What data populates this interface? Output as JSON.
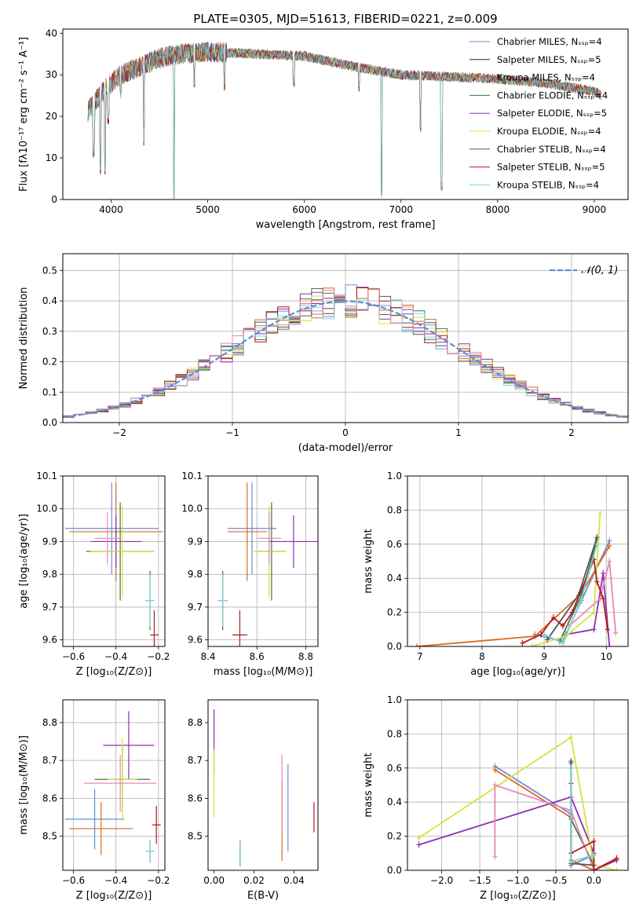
{
  "chart_data": [
    {
      "id": "spectrum",
      "type": "line",
      "title": "PLATE=0305, MJD=51613, FIBERID=0221, z=0.009",
      "xlabel": "wavelength [Angstrom, rest frame]",
      "ylabel": "Flux [fλ10⁻¹⁷ erg cm⁻² s⁻¹ A⁻¹]",
      "xlim": [
        3500,
        9350
      ],
      "ylim": [
        0,
        41
      ],
      "xticks": [
        4000,
        5000,
        6000,
        7000,
        8000,
        9000
      ],
      "yticks": [
        0,
        10,
        20,
        30,
        40
      ],
      "grid": false,
      "legend_position": "top-right",
      "legend": [
        {
          "label": "Chabrier MILES, Nₛₛₚ=4",
          "color": "#6a8fd1"
        },
        {
          "label": "Salpeter MILES, Nₛₛₚ=5",
          "color": "#2b2b2b"
        },
        {
          "label": "Kroupa MILES, Nₛₛₚ=4",
          "color": "#d96b1c"
        },
        {
          "label": "Chabrier ELODIE, Nₛₛₚ=4",
          "color": "#3d7a3d"
        },
        {
          "label": "Salpeter ELODIE, Nₛₛₚ=5",
          "color": "#8e2fb0"
        },
        {
          "label": "Kroupa ELODIE, Nₛₛₚ=4",
          "color": "#d6e23c"
        },
        {
          "label": "Chabrier STELIB, Nₛₛₚ=4",
          "color": "#555555"
        },
        {
          "label": "Salpeter STELIB, Nₛₛₚ=5",
          "color": "#b3191e"
        },
        {
          "label": "Kroupa STELIB, Nₛₛₚ=4",
          "color": "#7dd3d8"
        }
      ],
      "continuum": [
        [
          3750,
          21
        ],
        [
          3850,
          24
        ],
        [
          3950,
          27
        ],
        [
          4100,
          30
        ],
        [
          4300,
          32
        ],
        [
          4500,
          34
        ],
        [
          4700,
          35
        ],
        [
          5000,
          35.5
        ],
        [
          5500,
          35
        ],
        [
          6000,
          34.5
        ],
        [
          6500,
          32
        ],
        [
          7000,
          30
        ],
        [
          7500,
          29.5
        ],
        [
          8000,
          29
        ],
        [
          8500,
          28
        ],
        [
          9000,
          26
        ],
        [
          9080,
          25
        ]
      ],
      "absorption_features": [
        [
          3820,
          10
        ],
        [
          3890,
          6
        ],
        [
          3935,
          6
        ],
        [
          3970,
          18
        ],
        [
          4100,
          24
        ],
        [
          4340,
          13
        ],
        [
          4650,
          0
        ],
        [
          4861,
          27
        ],
        [
          5175,
          26
        ],
        [
          5890,
          27
        ],
        [
          6563,
          26
        ],
        [
          6800,
          0
        ],
        [
          7200,
          16
        ],
        [
          7420,
          2
        ]
      ]
    },
    {
      "id": "residuals",
      "type": "histogram",
      "xlabel": "(data-model)/error",
      "ylabel": "Normed distribution",
      "xlim": [
        -2.5,
        2.5
      ],
      "ylim": [
        0,
        0.555
      ],
      "xticks": [
        -2,
        -1,
        0,
        1,
        2
      ],
      "yticks": [
        0.0,
        0.1,
        0.2,
        0.3,
        0.4,
        0.5
      ],
      "grid": true,
      "legend_position": "top-right",
      "reference_curve": {
        "label": "𝒩(0, 1)",
        "color": "#5b8ed6",
        "mean": 0,
        "sigma": 1
      },
      "bin_width": 0.1,
      "series_colors": [
        "#6a8fd1",
        "#d96b1c",
        "#3d7a3d",
        "#8e2fb0",
        "#d6e23c",
        "#555555",
        "#b3191e",
        "#7dd3d8",
        "#e887b5"
      ]
    },
    {
      "id": "age-vs-z",
      "type": "errorbar",
      "xlabel": "Z [log₁₀(Z/Z⊙)]",
      "ylabel": "age  [log₁₀(age/yr)]",
      "xlim": [
        -0.65,
        -0.17
      ],
      "ylim": [
        9.58,
        10.1
      ],
      "xticks": [
        -0.6,
        -0.4,
        -0.2
      ],
      "xtick_labels": [
        "−0.6",
        "−0.4",
        "−0.2"
      ],
      "yticks": [
        9.6,
        9.7,
        9.8,
        9.9,
        10.0,
        10.1
      ],
      "grid": true,
      "points": [
        {
          "x": -0.42,
          "y": 9.94,
          "xerr": 0.22,
          "yerr": 0.14,
          "color": "#6a8fd1"
        },
        {
          "x": -0.4,
          "y": 9.93,
          "xerr": 0.22,
          "yerr": 0.15,
          "color": "#d96b1c"
        },
        {
          "x": -0.38,
          "y": 9.87,
          "xerr": 0.16,
          "yerr": 0.15,
          "color": "#3d7a3d"
        },
        {
          "x": -0.4,
          "y": 9.9,
          "xerr": 0.12,
          "yerr": 0.08,
          "color": "#8e2fb0"
        },
        {
          "x": -0.37,
          "y": 9.87,
          "xerr": 0.15,
          "yerr": 0.14,
          "color": "#d6e23c"
        },
        {
          "x": -0.44,
          "y": 9.91,
          "xerr": 0.06,
          "yerr": 0.08,
          "color": "#e887b5"
        },
        {
          "x": -0.24,
          "y": 9.72,
          "xerr": 0.02,
          "yerr": 0.09,
          "color": "#555555"
        },
        {
          "x": -0.22,
          "y": 9.615,
          "xerr": 0.02,
          "yerr": 0.075,
          "color": "#b3191e"
        },
        {
          "x": -0.24,
          "y": 9.72,
          "xerr": 0.02,
          "yerr": 0.08,
          "color": "#7dd3d8"
        }
      ]
    },
    {
      "id": "age-vs-mass",
      "type": "errorbar",
      "xlabel": "mass [log₁₀(M/M⊙)]",
      "ylabel": "",
      "xlim": [
        8.4,
        8.85
      ],
      "ylim": [
        9.58,
        10.1
      ],
      "xticks": [
        8.4,
        8.6,
        8.8
      ],
      "yticks": [
        9.6,
        9.7,
        9.8,
        9.9,
        10.0,
        10.1
      ],
      "grid": true,
      "points": [
        {
          "x": 8.58,
          "y": 9.94,
          "xerr": 0.1,
          "yerr": 0.14,
          "color": "#6a8fd1"
        },
        {
          "x": 8.56,
          "y": 9.93,
          "xerr": 0.08,
          "yerr": 0.15,
          "color": "#d96b1c"
        },
        {
          "x": 8.66,
          "y": 9.87,
          "xerr": 0.06,
          "yerr": 0.15,
          "color": "#3d7a3d"
        },
        {
          "x": 8.75,
          "y": 9.9,
          "xerr": 0.1,
          "yerr": 0.08,
          "color": "#8e2fb0"
        },
        {
          "x": 8.65,
          "y": 9.87,
          "xerr": 0.07,
          "yerr": 0.14,
          "color": "#d6e23c"
        },
        {
          "x": 8.65,
          "y": 9.91,
          "xerr": 0.05,
          "yerr": 0.08,
          "color": "#e887b5"
        },
        {
          "x": 8.46,
          "y": 9.72,
          "xerr": 0.02,
          "yerr": 0.09,
          "color": "#555555"
        },
        {
          "x": 8.53,
          "y": 9.615,
          "xerr": 0.03,
          "yerr": 0.075,
          "color": "#b3191e"
        },
        {
          "x": 8.46,
          "y": 9.72,
          "xerr": 0.02,
          "yerr": 0.08,
          "color": "#7dd3d8"
        }
      ]
    },
    {
      "id": "weight-vs-age",
      "type": "line",
      "xlabel": "age  [log₁₀(age/yr)]",
      "ylabel": "mass weight",
      "xlim": [
        6.8,
        10.35
      ],
      "ylim": [
        0,
        1.0
      ],
      "xticks": [
        7,
        8,
        9,
        10
      ],
      "yticks": [
        0.0,
        0.2,
        0.4,
        0.6,
        0.8,
        1.0
      ],
      "grid": true,
      "series": [
        {
          "color": "#6a8fd1",
          "points": [
            [
              8.85,
              0.07
            ],
            [
              9.3,
              0.03
            ],
            [
              9.6,
              0.27
            ],
            [
              10.05,
              0.62
            ]
          ]
        },
        {
          "color": "#d96b1c",
          "points": [
            [
              6.95,
              0.0
            ],
            [
              8.85,
              0.06
            ],
            [
              9.6,
              0.31
            ],
            [
              10.05,
              0.59
            ]
          ]
        },
        {
          "color": "#3d7a3d",
          "points": [
            [
              9.25,
              0.03
            ],
            [
              9.6,
              0.3
            ],
            [
              9.85,
              0.63
            ]
          ]
        },
        {
          "color": "#8e2fb0",
          "points": [
            [
              9.35,
              0.07
            ],
            [
              9.8,
              0.1
            ],
            [
              9.95,
              0.43
            ],
            [
              10.05,
              0.0
            ]
          ]
        },
        {
          "color": "#d6e23c",
          "points": [
            [
              8.8,
              0.0
            ],
            [
              9.35,
              0.06
            ],
            [
              9.8,
              0.2
            ],
            [
              9.9,
              0.78
            ]
          ]
        },
        {
          "color": "#e887b5",
          "points": [
            [
              9.4,
              0.12
            ],
            [
              9.9,
              0.28
            ],
            [
              10.05,
              0.5
            ],
            [
              10.15,
              0.08
            ]
          ]
        },
        {
          "color": "#555555",
          "points": [
            [
              9.05,
              0.04
            ],
            [
              9.55,
              0.3
            ],
            [
              9.85,
              0.64
            ]
          ]
        },
        {
          "color": "#b3191e",
          "points": [
            [
              8.65,
              0.02
            ],
            [
              8.95,
              0.07
            ],
            [
              9.15,
              0.17
            ],
            [
              9.3,
              0.12
            ],
            [
              9.45,
              0.2
            ],
            [
              9.8,
              0.51
            ],
            [
              9.85,
              0.38
            ],
            [
              9.95,
              0.28
            ],
            [
              10.02,
              0.1
            ]
          ]
        },
        {
          "color": "#7dd3d8",
          "points": [
            [
              9.0,
              0.07
            ],
            [
              9.3,
              0.02
            ],
            [
              9.6,
              0.28
            ],
            [
              9.85,
              0.6
            ]
          ]
        }
      ]
    },
    {
      "id": "mass-vs-z",
      "type": "errorbar",
      "xlabel": "Z [log₁₀(Z/Z⊙)]",
      "ylabel": "mass [log₁₀(M/M⊙)]",
      "xlim": [
        -0.65,
        -0.17
      ],
      "ylim": [
        8.41,
        8.86
      ],
      "xticks": [
        -0.6,
        -0.4,
        -0.2
      ],
      "xtick_labels": [
        "−0.6",
        "−0.4",
        "−0.2"
      ],
      "yticks": [
        8.5,
        8.6,
        8.7,
        8.8
      ],
      "grid": true,
      "points": [
        {
          "x": -0.5,
          "y": 8.545,
          "xerr": 0.14,
          "yerr": 0.08,
          "color": "#6a8fd1"
        },
        {
          "x": -0.47,
          "y": 8.52,
          "xerr": 0.15,
          "yerr": 0.07,
          "color": "#d96b1c"
        },
        {
          "x": -0.37,
          "y": 8.65,
          "xerr": 0.13,
          "yerr": 0.085,
          "color": "#3d7a3d"
        },
        {
          "x": -0.34,
          "y": 8.74,
          "xerr": 0.12,
          "yerr": 0.09,
          "color": "#8e2fb0"
        },
        {
          "x": -0.37,
          "y": 8.65,
          "xerr": 0.07,
          "yerr": 0.11,
          "color": "#d6e23c"
        },
        {
          "x": -0.38,
          "y": 8.64,
          "xerr": 0.17,
          "yerr": 0.075,
          "color": "#e887b5"
        },
        {
          "x": -0.24,
          "y": 8.46,
          "xerr": 0.02,
          "yerr": 0.03,
          "color": "#555555"
        },
        {
          "x": -0.21,
          "y": 8.53,
          "xerr": 0.02,
          "yerr": 0.05,
          "color": "#b3191e"
        },
        {
          "x": -0.24,
          "y": 8.46,
          "xerr": 0.02,
          "yerr": 0.03,
          "color": "#7dd3d8"
        }
      ]
    },
    {
      "id": "mass-vs-ebv",
      "type": "errorbar",
      "xlabel": "E(B-V)",
      "ylabel": "",
      "xlim": [
        -0.003,
        0.052
      ],
      "ylim": [
        8.41,
        8.86
      ],
      "xticks": [
        0.0,
        0.02,
        0.04
      ],
      "xtick_labels": [
        "0.00",
        "0.02",
        "0.04"
      ],
      "yticks": [
        8.5,
        8.6,
        8.7,
        8.8
      ],
      "grid": false,
      "points": [
        {
          "x": 0.037,
          "y": 8.575,
          "xerr": 0,
          "yerr": 0.115,
          "color": "#6a8fd1"
        },
        {
          "x": 0.034,
          "y": 8.54,
          "xerr": 0,
          "yerr": 0.105,
          "color": "#d96b1c"
        },
        {
          "x": 0.013,
          "y": 8.455,
          "xerr": 0,
          "yerr": 0.035,
          "color": "#3d7a3d"
        },
        {
          "x": 0.0,
          "y": 8.75,
          "xerr": 0,
          "yerr": 0.085,
          "color": "#8e2fb0"
        },
        {
          "x": 0.0,
          "y": 8.64,
          "xerr": 0,
          "yerr": 0.09,
          "color": "#d6e23c"
        },
        {
          "x": 0.034,
          "y": 8.61,
          "xerr": 0,
          "yerr": 0.105,
          "color": "#e887b5"
        },
        {
          "x": 0.013,
          "y": 8.455,
          "xerr": 0,
          "yerr": 0.03,
          "color": "#555555"
        },
        {
          "x": 0.05,
          "y": 8.55,
          "xerr": 0,
          "yerr": 0.04,
          "color": "#b3191e"
        },
        {
          "x": 0.013,
          "y": 8.455,
          "xerr": 0,
          "yerr": 0.035,
          "color": "#7dd3d8"
        }
      ]
    },
    {
      "id": "weight-vs-z",
      "type": "line",
      "xlabel": "Z [log₁₀(Z/Z⊙)]",
      "ylabel": "mass weight",
      "xlim": [
        -2.45,
        0.45
      ],
      "ylim": [
        0,
        1.0
      ],
      "xticks": [
        -2.0,
        -1.5,
        -1.0,
        -0.5,
        0.0
      ],
      "xtick_labels": [
        "−2.0",
        "−1.5",
        "−1.0",
        "−0.5",
        "0.0"
      ],
      "yticks": [
        0.0,
        0.2,
        0.4,
        0.6,
        0.8,
        1.0
      ],
      "grid": true,
      "series": [
        {
          "color": "#6a8fd1",
          "points": [
            [
              -1.3,
              0.61
            ],
            [
              -0.3,
              0.33
            ],
            [
              -0.3,
              0.03
            ],
            [
              0.0,
              0.09
            ]
          ]
        },
        {
          "color": "#d96b1c",
          "points": [
            [
              -1.3,
              0.59
            ],
            [
              -0.3,
              0.31
            ],
            [
              -0.3,
              0.06
            ],
            [
              0.0,
              0.0
            ],
            [
              0.3,
              0.06
            ]
          ]
        },
        {
          "color": "#3d7a3d",
          "points": [
            [
              -0.3,
              0.63
            ],
            [
              -0.3,
              0.3
            ],
            [
              0.0,
              0.03
            ]
          ]
        },
        {
          "color": "#8e2fb0",
          "points": [
            [
              -2.3,
              0.15
            ],
            [
              -0.3,
              0.43
            ],
            [
              0.0,
              0.1
            ],
            [
              0.0,
              0.0
            ],
            [
              0.3,
              0.06
            ]
          ]
        },
        {
          "color": "#d6e23c",
          "points": [
            [
              -2.3,
              0.19
            ],
            [
              -0.3,
              0.78
            ],
            [
              0.0,
              0.03
            ],
            [
              0.3,
              0.0
            ]
          ]
        },
        {
          "color": "#e887b5",
          "points": [
            [
              -1.3,
              0.08
            ],
            [
              -1.3,
              0.5
            ],
            [
              -0.3,
              0.35
            ],
            [
              0.0,
              0.0
            ],
            [
              0.3,
              0.07
            ]
          ]
        },
        {
          "color": "#555555",
          "points": [
            [
              -0.3,
              0.64
            ],
            [
              -0.3,
              0.04
            ],
            [
              0.0,
              0.03
            ]
          ]
        },
        {
          "color": "#b3191e",
          "points": [
            [
              -0.3,
              0.51
            ],
            [
              -0.3,
              0.1
            ],
            [
              0.0,
              0.17
            ],
            [
              0.0,
              0.0
            ],
            [
              0.3,
              0.07
            ]
          ]
        },
        {
          "color": "#7dd3d8",
          "points": [
            [
              -0.3,
              0.6
            ],
            [
              -0.3,
              0.05
            ],
            [
              0.0,
              0.09
            ]
          ]
        }
      ]
    }
  ]
}
